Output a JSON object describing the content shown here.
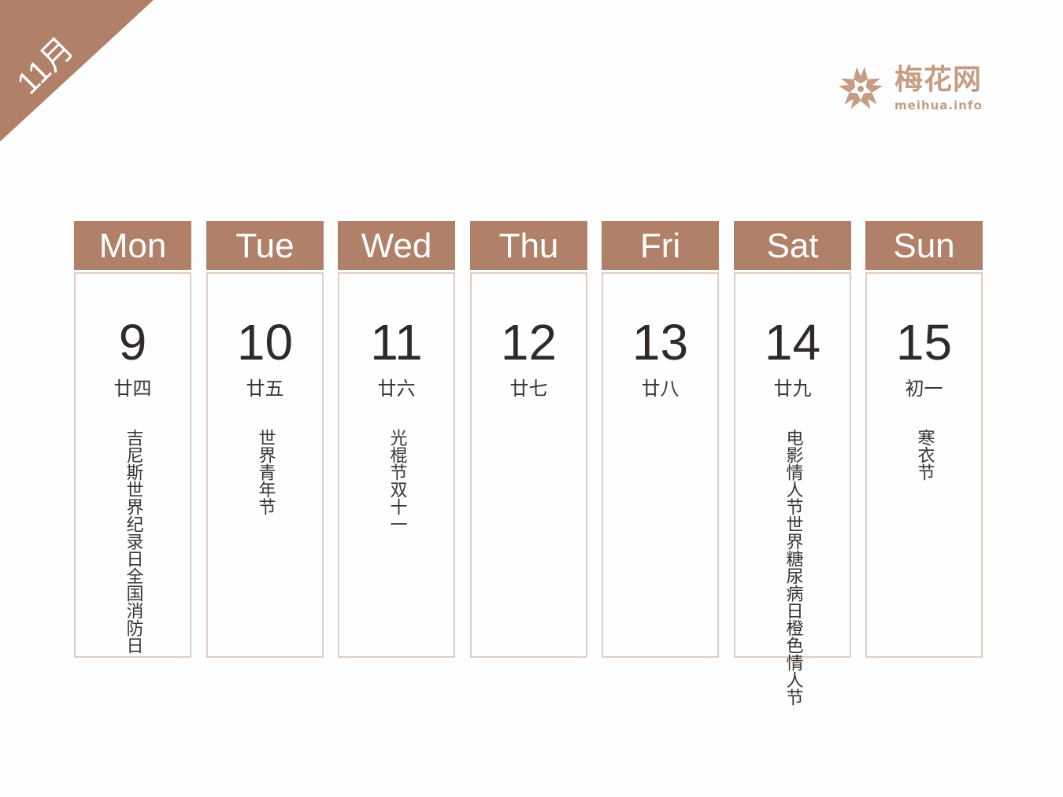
{
  "month_label": "11月",
  "logo": {
    "name": "梅花网",
    "url": "meihua.info",
    "color": "#c59d84"
  },
  "accent_color": "#b08068",
  "days": [
    {
      "weekday": "Mon",
      "date": "9",
      "lunar": "廿四",
      "festivals": [
        "吉尼斯世界纪录日",
        "全国消防日"
      ]
    },
    {
      "weekday": "Tue",
      "date": "10",
      "lunar": "廿五",
      "festivals": [
        "世界青年节"
      ]
    },
    {
      "weekday": "Wed",
      "date": "11",
      "lunar": "廿六",
      "festivals": [
        "光棍节",
        "双十一"
      ]
    },
    {
      "weekday": "Thu",
      "date": "12",
      "lunar": "廿七",
      "festivals": []
    },
    {
      "weekday": "Fri",
      "date": "13",
      "lunar": "廿八",
      "festivals": []
    },
    {
      "weekday": "Sat",
      "date": "14",
      "lunar": "廿九",
      "festivals": [
        "电影情人节",
        "世界糖尿病日",
        "橙色情人节"
      ]
    },
    {
      "weekday": "Sun",
      "date": "15",
      "lunar": "初一",
      "festivals": [
        "寒衣节"
      ]
    }
  ]
}
